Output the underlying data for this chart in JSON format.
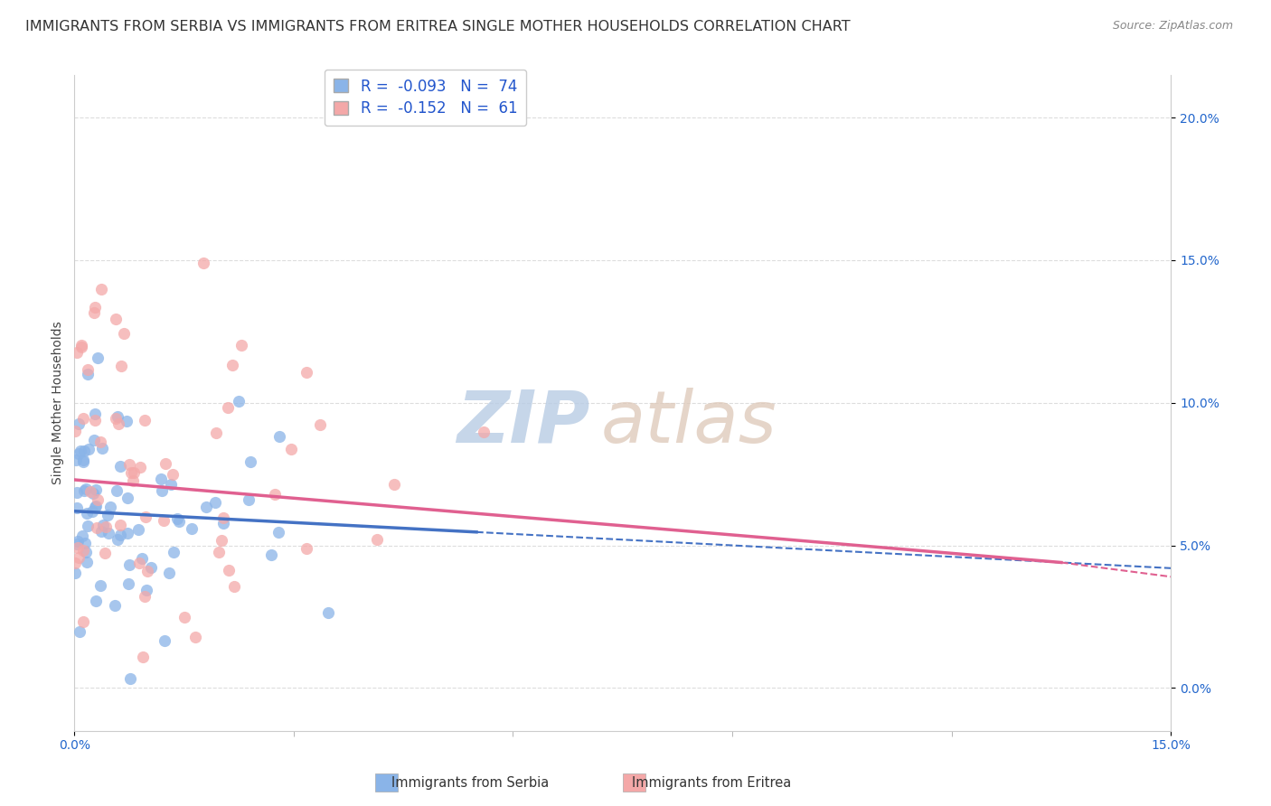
{
  "title": "IMMIGRANTS FROM SERBIA VS IMMIGRANTS FROM ERITREA SINGLE MOTHER HOUSEHOLDS CORRELATION CHART",
  "source": "Source: ZipAtlas.com",
  "ylabel": "Single Mother Households",
  "xlim": [
    0.0,
    0.15
  ],
  "ylim": [
    -0.015,
    0.215
  ],
  "xtick_positions": [
    0.0,
    0.15
  ],
  "xtick_labels": [
    "0.0%",
    "15.0%"
  ],
  "xtick_minor_positions": [
    0.03,
    0.06,
    0.09,
    0.12
  ],
  "yticks": [
    0.0,
    0.05,
    0.1,
    0.15,
    0.2
  ],
  "ytick_labels": [
    "0.0%",
    "5.0%",
    "10.0%",
    "15.0%",
    "20.0%"
  ],
  "serbia_color": "#8ab4e8",
  "eritrea_color": "#f4a8a8",
  "serbia_line_color": "#4472c4",
  "eritrea_line_color": "#e06090",
  "serbia_R": -0.093,
  "serbia_N": 74,
  "eritrea_R": -0.152,
  "eritrea_N": 61,
  "serbia_seed": 42,
  "eritrea_seed": 99,
  "watermark_zip": "ZIP",
  "watermark_atlas": "atlas",
  "watermark_color": "#c8d8ee",
  "watermark_atlas_color": "#d0c8c0",
  "background_color": "#ffffff",
  "grid_color": "#dddddd",
  "title_fontsize": 11.5,
  "axis_label_fontsize": 10,
  "tick_fontsize": 10,
  "legend_fontsize": 12,
  "serbia_line_x_solid_end": 0.055,
  "eritrea_line_x_solid_end": 0.135,
  "serbia_line_y0": 0.062,
  "serbia_line_y_end": 0.042,
  "eritrea_line_y0": 0.073,
  "eritrea_line_y_end": 0.044
}
